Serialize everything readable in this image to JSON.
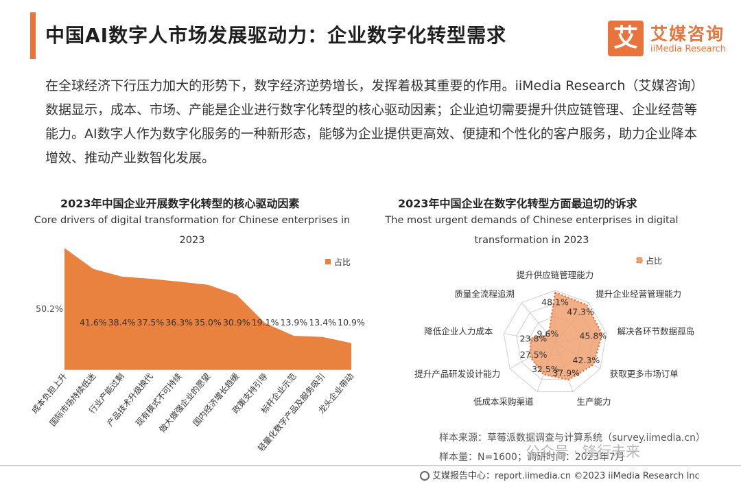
{
  "header": {
    "title": "中国AI数字人市场发展驱动力：企业数字化转型需求",
    "accent_color": "#e8743b",
    "logo": {
      "icon_char": "艾",
      "name_cn": "艾媒咨询",
      "name_en": "iiMedia Research"
    }
  },
  "intro": {
    "paragraph": "在全球经济下行压力加大的形势下，数字经济逆势增长，发挥着极其重要的作用。iiMedia Research（艾媒咨询）数据显示，成本、市场、产能是企业进行数字化转型的核心驱动因素；企业迫切需要提升供应链管理、企业经营等能力。AI数字人作为数字化服务的一种新形态，能够为企业提供更高效、便捷和个性化的客户服务，助力企业降本增效、推动产业数智化发展。"
  },
  "chart_data": [
    {
      "type": "area",
      "title": "2023年中国企业开展数字化转型的核心驱动因素",
      "subtitle": "Core drivers of digital transformation for Chinese enterprises in 2023",
      "legend": {
        "label": "占比",
        "position": "top-right"
      },
      "color": "#e8823e",
      "categories": [
        "成本负担上升",
        "国际市场持续低迷",
        "行业产能过剩",
        "产品技术升级换代",
        "现有模式不可持续",
        "做大做强企业的愿望",
        "国内经济增长趋缓",
        "政策支持引导",
        "标杆企业示范",
        "轻量化数字产品及服务吸引",
        "龙头企业带动"
      ],
      "values": [
        50.2,
        41.6,
        38.4,
        37.5,
        36.3,
        35.0,
        30.9,
        19.1,
        13.9,
        13.4,
        10.9
      ],
      "value_labels": [
        "50.2%",
        "41.6%",
        "38.4%",
        "37.5%",
        "36.3%",
        "35.0%",
        "30.9%",
        "19.1%",
        "13.9%",
        "13.4%",
        "10.9%"
      ],
      "ylim": [
        0,
        52
      ],
      "grid": false
    },
    {
      "type": "radar",
      "title": "2023年中国企业在数字化转型方面最迫切的诉求",
      "subtitle_lines": [
        "The most urgent demands of Chinese enterprises in digital",
        "transformation in 2023"
      ],
      "legend": {
        "label": "占比",
        "position": "top-right"
      },
      "color": "#f0a070",
      "stroke_color": "#e8743b",
      "categories": [
        "提升供应链管理能力",
        "提升企业经营管理能力",
        "解决各环节数据孤岛",
        "获取更多市场订单",
        "生产能力",
        "低成本采购渠道",
        "提升产品研发设计能力",
        "降低企业人力成本",
        "质量全流程追溯"
      ],
      "values": [
        48.1,
        47.3,
        45.8,
        42.3,
        37.9,
        32.5,
        27.5,
        23.8,
        9.6
      ],
      "value_labels": [
        "48.1%",
        "47.3%",
        "45.8%",
        "42.3%",
        "37.9%",
        "32.5%",
        "27.5%",
        "23.8%",
        "9.6%"
      ],
      "rmax": 50,
      "grid": true
    }
  ],
  "footer": {
    "source": "样本来源：草莓派数据调查与计算系统（survey.iimedia.cn）",
    "sample": "样本量：N=1600；调研时间：2023年7月",
    "watermark": "公众号 · 锋行未来",
    "bottom": "艾媒报告中心：report.iimedia.cn  ©2023  iiMedia Research  Inc"
  }
}
